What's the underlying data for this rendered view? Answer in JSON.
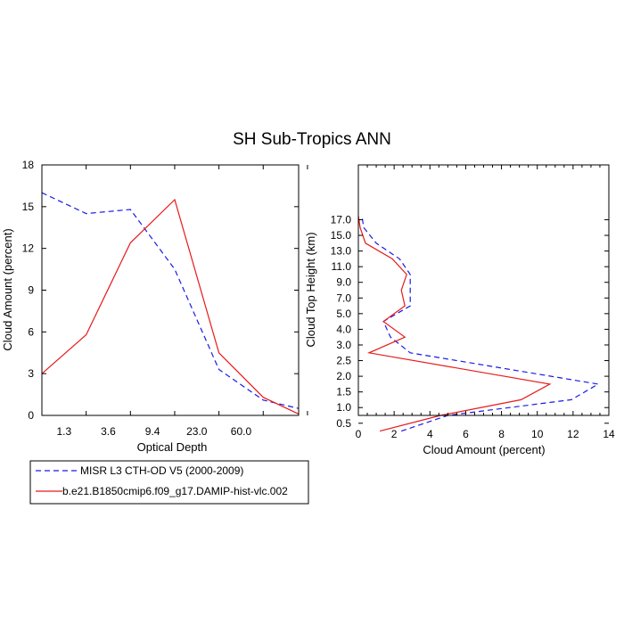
{
  "title": "SH Sub-Tropics ANN",
  "colors": {
    "obs": "#1a1ae6",
    "model": "#e61a1a"
  },
  "legend": {
    "items": [
      {
        "label": "MISR L3 CTH-OD V5 (2000-2009)",
        "color": "#1a1ae6",
        "dash": true
      },
      {
        "label": "b.e21.B1850cmip6.f09_g17.DAMIP-hist-vlc.002",
        "color": "#e61a1a",
        "dash": false
      }
    ]
  },
  "chart_data": [
    {
      "type": "line",
      "xlabel": "Optical Depth",
      "ylabel": "Cloud Amount (percent)",
      "x_tick_labels": [
        "1.3",
        "3.6",
        "9.4",
        "23.0",
        "60.0"
      ],
      "x_positions": [
        1,
        2,
        3,
        4,
        5,
        6,
        7
      ],
      "xlim": [
        1,
        6.8
      ],
      "ylim": [
        0,
        18
      ],
      "y_ticks": [
        0,
        3,
        6,
        9,
        12,
        15,
        18
      ],
      "series": [
        {
          "name": "MISR L3 CTH-OD V5 (2000-2009)",
          "color": "#1a1ae6",
          "dash": true,
          "x": [
            1,
            2,
            3,
            4,
            5,
            6,
            6.8
          ],
          "y": [
            16.0,
            14.5,
            14.8,
            10.5,
            3.3,
            1.1,
            0.5
          ]
        },
        {
          "name": "b.e21.B1850cmip6.f09_g17.DAMIP-hist-vlc.002",
          "color": "#e61a1a",
          "dash": false,
          "x": [
            1,
            2,
            3,
            4,
            5,
            6,
            6.8
          ],
          "y": [
            3.0,
            5.8,
            12.4,
            15.5,
            4.5,
            1.3,
            0.1
          ]
        }
      ]
    },
    {
      "type": "line",
      "xlabel": "Cloud Amount (percent)",
      "ylabel": "Cloud Top Height (km)",
      "x_ticks": [
        0,
        2,
        4,
        6,
        8,
        10,
        12,
        14
      ],
      "xlim": [
        0,
        14
      ],
      "y_tick_labels": [
        "0.5",
        "1.0",
        "1.5",
        "2.0",
        "2.5",
        "3.0",
        "4.0",
        "5.0",
        "7.0",
        "9.0",
        "11.0",
        "13.0",
        "15.0",
        "17.0"
      ],
      "y_index_range": [
        0.5,
        16.5
      ],
      "series": [
        {
          "name": "MISR L3 CTH-OD V5 (2000-2009)",
          "color": "#1a1ae6",
          "dash": true,
          "x": [
            2.4,
            5.0,
            11.9,
            13.4,
            2.9,
            1.8,
            1.4,
            2.9,
            2.9,
            2.9,
            2.3,
            1.0,
            0.3,
            0.2
          ],
          "y": [
            0.25,
            0.75,
            1.25,
            1.75,
            2.75,
            3.5,
            4.5,
            6.0,
            8.0,
            10.0,
            12.0,
            14.0,
            16.0,
            17.5
          ]
        },
        {
          "name": "b.e21.B1850cmip6.f09_g17.DAMIP-hist-vlc.002",
          "color": "#e61a1a",
          "dash": false,
          "x": [
            1.2,
            4.6,
            9.1,
            10.7,
            0.6,
            2.6,
            1.4,
            2.6,
            2.4,
            2.7,
            1.9,
            0.4,
            0.1,
            0.0
          ],
          "y": [
            0.25,
            0.75,
            1.25,
            1.75,
            2.75,
            3.5,
            4.5,
            6.0,
            8.0,
            10.0,
            12.0,
            14.0,
            16.0,
            17.5
          ]
        }
      ]
    }
  ]
}
